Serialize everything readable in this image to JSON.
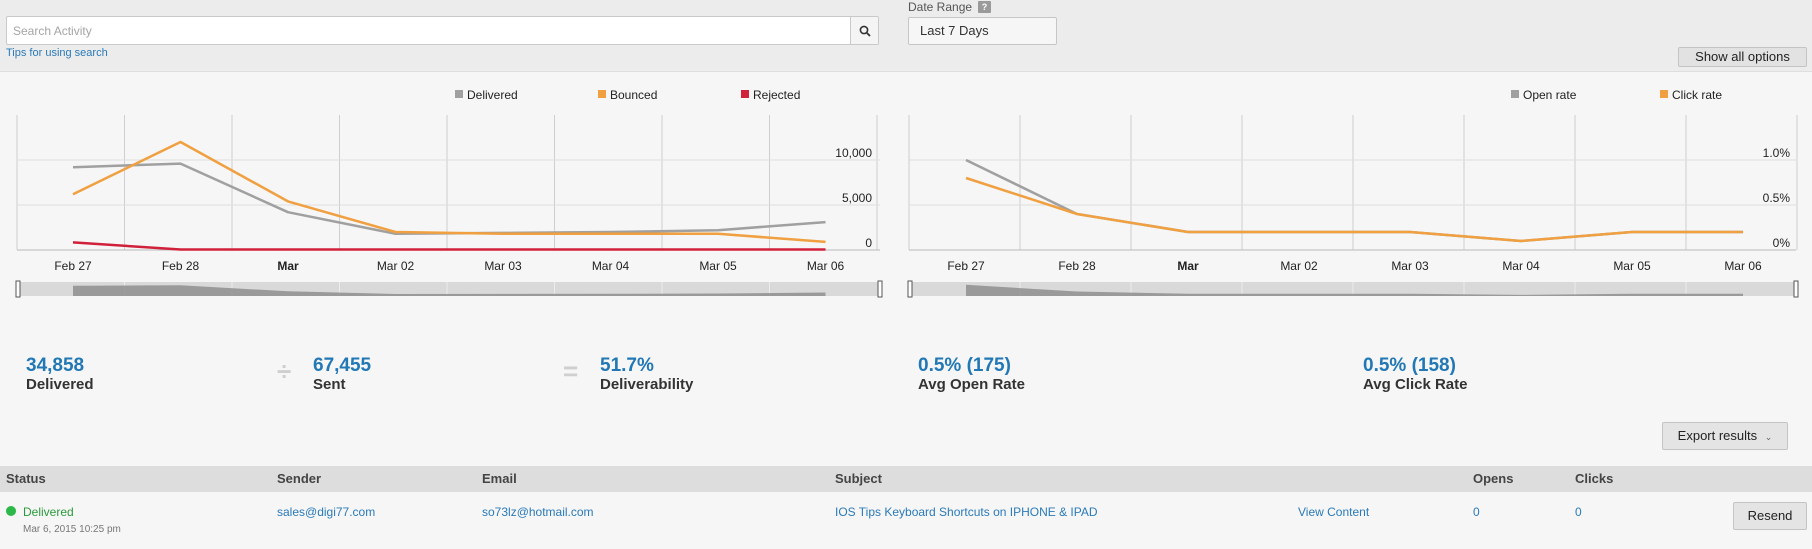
{
  "search": {
    "placeholder": "Search Activity",
    "value": "",
    "tips_link": "Tips for using search"
  },
  "date_range": {
    "label": "Date Range",
    "help": "?",
    "selected": "Last 7 Days"
  },
  "show_all_options": "Show all options",
  "chart_data": [
    {
      "type": "line",
      "categories": [
        "Feb 27",
        "Feb 28",
        "Mar",
        "Mar 02",
        "Mar 03",
        "Mar 04",
        "Mar 05",
        "Mar 06"
      ],
      "series": [
        {
          "name": "Delivered",
          "values": [
            9200,
            9600,
            4200,
            1800,
            1900,
            2000,
            2200,
            3100
          ],
          "color": "#a0a0a0"
        },
        {
          "name": "Bounced",
          "values": [
            6200,
            12000,
            5400,
            2000,
            1800,
            1800,
            1800,
            900
          ],
          "color": "#f0a040"
        },
        {
          "name": "Rejected",
          "values": [
            850,
            50,
            50,
            50,
            50,
            50,
            50,
            50
          ],
          "color": "#d0203a"
        }
      ],
      "yticks": [
        "0",
        "5,000",
        "10,000"
      ],
      "ytick_values": [
        0,
        5000,
        10000
      ],
      "ylim": [
        0,
        15000
      ],
      "legend": "top",
      "grid": true
    },
    {
      "type": "line",
      "categories": [
        "Feb 27",
        "Feb 28",
        "Mar",
        "Mar 02",
        "Mar 03",
        "Mar 04",
        "Mar 05",
        "Mar 06"
      ],
      "series": [
        {
          "name": "Open rate",
          "values": [
            1.0,
            0.4,
            0.2,
            0.2,
            0.2,
            0.1,
            0.2,
            0.2
          ],
          "color": "#a0a0a0"
        },
        {
          "name": "Click rate",
          "values": [
            0.8,
            0.4,
            0.2,
            0.2,
            0.2,
            0.1,
            0.2,
            0.2
          ],
          "color": "#f0a040"
        }
      ],
      "yticks": [
        "0%",
        "0.5%",
        "1.0%"
      ],
      "ytick_values": [
        0,
        0.5,
        1.0
      ],
      "ylim": [
        0,
        1.5
      ],
      "legend": "top-right",
      "grid": true
    }
  ],
  "stats": {
    "delivered": {
      "value": "34,858",
      "label": "Delivered"
    },
    "sent": {
      "value": "67,455",
      "label": "Sent"
    },
    "deliverability": {
      "value": "51.7%",
      "label": "Deliverability"
    },
    "divide": "÷",
    "equals": "=",
    "open": {
      "value": "0.5% (175)",
      "label": "Avg Open Rate"
    },
    "click": {
      "value": "0.5% (158)",
      "label": "Avg Click Rate"
    }
  },
  "export_results": "Export results",
  "table": {
    "columns": {
      "status": "Status",
      "sender": "Sender",
      "email": "Email",
      "subject": "Subject",
      "opens": "Opens",
      "clicks": "Clicks"
    },
    "rows": [
      {
        "status": "Delivered",
        "status_color": "#2db84a",
        "timestamp": "Mar 6, 2015 10:25 pm",
        "sender": "sales@digi77.com",
        "email": "so73lz@hotmail.com",
        "subject": "IOS Tips Keyboard Shortcuts on IPHONE & IPAD",
        "view_content": "View Content",
        "opens": "0",
        "clicks": "0",
        "action": "Resend"
      }
    ]
  }
}
